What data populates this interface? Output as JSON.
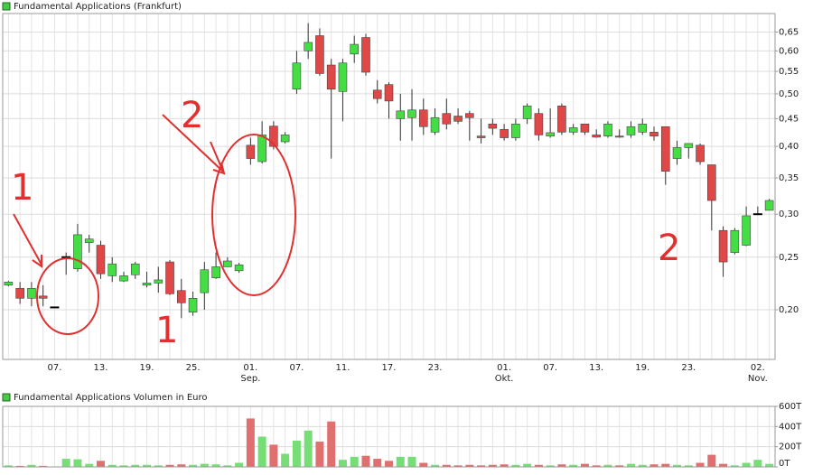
{
  "chart_data": [
    {
      "type": "candlestick",
      "title": "Fundamental Applications (Frankfurt)",
      "categories": [
        null,
        null,
        null,
        null,
        "07.",
        null,
        null,
        null,
        "13.",
        null,
        null,
        null,
        "19.",
        null,
        null,
        null,
        "25.",
        null,
        null,
        null,
        null,
        "01.\nSep.",
        null,
        null,
        null,
        "07.",
        null,
        null,
        null,
        "11.",
        null,
        null,
        null,
        "17.",
        null,
        null,
        null,
        "23.",
        null,
        null,
        null,
        null,
        null,
        "01.\nOkt.",
        null,
        null,
        null,
        "07.",
        null,
        null,
        null,
        "13.",
        null,
        null,
        null,
        "19.",
        null,
        null,
        null,
        "23.",
        null,
        null,
        null,
        null,
        null,
        "02.\nNov.",
        null
      ],
      "open": [
        0.222,
        0.219,
        0.21,
        0.212,
        0.202,
        0.25,
        0.238,
        0.266,
        0.263,
        0.231,
        0.226,
        0.232,
        0.222,
        0.224,
        0.245,
        0.217,
        0.198,
        0.215,
        0.229,
        0.24,
        0.236,
        0.402,
        0.375,
        0.436,
        0.408,
        0.51,
        0.6,
        0.64,
        0.565,
        0.505,
        0.592,
        0.635,
        0.508,
        0.52,
        0.45,
        0.452,
        0.467,
        0.425,
        0.46,
        0.455,
        0.46,
        0.418,
        0.44,
        0.43,
        0.415,
        0.45,
        0.46,
        0.418,
        0.475,
        0.425,
        0.44,
        0.42,
        0.418,
        0.418,
        0.42,
        0.425,
        0.425,
        0.435,
        0.38,
        0.398,
        0.402,
        0.37,
        0.28,
        0.255,
        0.263,
        0.3,
        0.305
      ],
      "high": [
        0.226,
        0.225,
        0.225,
        0.222,
        0.202,
        0.255,
        0.288,
        0.275,
        0.268,
        0.25,
        0.235,
        0.245,
        0.235,
        0.24,
        0.247,
        0.228,
        0.216,
        0.245,
        0.255,
        0.25,
        0.244,
        0.415,
        0.445,
        0.445,
        0.425,
        0.6,
        0.675,
        0.66,
        0.58,
        0.58,
        0.64,
        0.645,
        0.53,
        0.525,
        0.5,
        0.51,
        0.49,
        0.47,
        0.49,
        0.47,
        0.465,
        0.45,
        0.45,
        0.44,
        0.45,
        0.48,
        0.47,
        0.47,
        0.48,
        0.44,
        0.44,
        0.43,
        0.445,
        0.43,
        0.445,
        0.45,
        0.435,
        0.435,
        0.41,
        0.405,
        0.405,
        0.37,
        0.285,
        0.283,
        0.31,
        0.31,
        0.32
      ],
      "low": [
        0.221,
        0.205,
        0.203,
        0.203,
        0.202,
        0.232,
        0.235,
        0.255,
        0.228,
        0.225,
        0.225,
        0.228,
        0.22,
        0.215,
        0.213,
        0.193,
        0.195,
        0.2,
        0.228,
        0.24,
        0.234,
        0.37,
        0.372,
        0.395,
        0.405,
        0.5,
        0.58,
        0.54,
        0.38,
        0.445,
        0.57,
        0.54,
        0.48,
        0.45,
        0.41,
        0.41,
        0.42,
        0.42,
        0.43,
        0.44,
        0.41,
        0.405,
        0.42,
        0.41,
        0.41,
        0.44,
        0.41,
        0.415,
        0.42,
        0.42,
        0.42,
        0.415,
        0.415,
        0.415,
        0.415,
        0.42,
        0.41,
        0.34,
        0.37,
        0.38,
        0.37,
        0.28,
        0.23,
        0.253,
        0.262,
        0.3,
        0.305
      ],
      "close": [
        0.225,
        0.21,
        0.219,
        0.21,
        0.202,
        0.25,
        0.275,
        0.27,
        0.233,
        0.243,
        0.231,
        0.243,
        0.224,
        0.227,
        0.214,
        0.206,
        0.21,
        0.237,
        0.24,
        0.246,
        0.242,
        0.38,
        0.42,
        0.4,
        0.42,
        0.57,
        0.622,
        0.545,
        0.51,
        0.57,
        0.617,
        0.548,
        0.49,
        0.485,
        0.465,
        0.467,
        0.435,
        0.452,
        0.44,
        0.445,
        0.452,
        0.415,
        0.432,
        0.415,
        0.44,
        0.475,
        0.42,
        0.424,
        0.425,
        0.433,
        0.425,
        0.416,
        0.44,
        0.416,
        0.435,
        0.44,
        0.418,
        0.36,
        0.398,
        0.405,
        0.375,
        0.318,
        0.245,
        0.28,
        0.298,
        0.3,
        0.318
      ],
      "up_color": "#44dd44",
      "down_color": "#e04848",
      "doji_color": "#000000",
      "log_scale": true,
      "ylim": [
        0.162,
        0.703
      ],
      "yticks": [
        {
          "value": 0.2,
          "label": "0,20"
        },
        {
          "value": 0.25,
          "label": "0,25"
        },
        {
          "value": 0.3,
          "label": "0,30"
        },
        {
          "value": 0.35,
          "label": "0,35"
        },
        {
          "value": 0.4,
          "label": "0,40"
        },
        {
          "value": 0.45,
          "label": "0,45"
        },
        {
          "value": 0.5,
          "label": "0,50"
        },
        {
          "value": 0.55,
          "label": "0,55"
        },
        {
          "value": 0.6,
          "label": "0,60"
        },
        {
          "value": 0.65,
          "label": "0,65"
        }
      ],
      "grid": true,
      "annotations": [
        "1",
        "1",
        "2",
        "2"
      ]
    },
    {
      "type": "bar",
      "title": "Fundamental Applications Volumen in Euro",
      "values": [
        15000,
        10000,
        20000,
        10000,
        5000,
        80000,
        75000,
        30000,
        60000,
        20000,
        15000,
        20000,
        20000,
        15000,
        20000,
        25000,
        20000,
        30000,
        25000,
        15000,
        40000,
        480000,
        300000,
        220000,
        130000,
        260000,
        360000,
        250000,
        450000,
        70000,
        100000,
        110000,
        80000,
        60000,
        100000,
        100000,
        40000,
        20000,
        20000,
        15000,
        20000,
        15000,
        20000,
        25000,
        20000,
        30000,
        20000,
        15000,
        25000,
        20000,
        30000,
        15000,
        20000,
        15000,
        30000,
        20000,
        25000,
        30000,
        20000,
        15000,
        40000,
        120000,
        30000,
        15000,
        40000,
        70000,
        30000
      ],
      "ylim": [
        0,
        600000
      ],
      "yticks": [
        {
          "value": 0,
          "label": "0T"
        },
        {
          "value": 200000,
          "label": "200T"
        },
        {
          "value": 400000,
          "label": "400T"
        },
        {
          "value": 600000,
          "label": "600T"
        }
      ],
      "grid": true
    }
  ]
}
